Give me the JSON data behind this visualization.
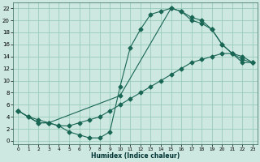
{
  "xlabel": "Humidex (Indice chaleur)",
  "ylabel": "",
  "bg_color": "#cce8e0",
  "grid_color": "#99ccbb",
  "line_color": "#1a6655",
  "xlim": [
    -0.5,
    23.5
  ],
  "ylim": [
    -0.5,
    23
  ],
  "xticks": [
    0,
    1,
    2,
    3,
    4,
    5,
    6,
    7,
    8,
    9,
    10,
    11,
    12,
    13,
    14,
    15,
    16,
    17,
    18,
    19,
    20,
    21,
    22,
    23
  ],
  "yticks": [
    0,
    2,
    4,
    6,
    8,
    10,
    12,
    14,
    16,
    18,
    20,
    22
  ],
  "line1_x": [
    0,
    1,
    2,
    3,
    4,
    5,
    6,
    7,
    8,
    9,
    10,
    11,
    12,
    13,
    14,
    15,
    16,
    17,
    18,
    19,
    20,
    21,
    22,
    23
  ],
  "line1_y": [
    5,
    4,
    3,
    3,
    2.5,
    1.5,
    1,
    0.5,
    0.5,
    1.5,
    9,
    15.5,
    18.5,
    21,
    21.5,
    22,
    21.5,
    20.5,
    20,
    18.5,
    16,
    14.5,
    13,
    13
  ],
  "line2_x": [
    0,
    2,
    3,
    10,
    15,
    16,
    17,
    18,
    19,
    20,
    21,
    22,
    23
  ],
  "line2_y": [
    5,
    3,
    3,
    7.5,
    22,
    21.5,
    20,
    19.5,
    18.5,
    16,
    14.5,
    13.5,
    13
  ],
  "line3_x": [
    0,
    1,
    2,
    3,
    4,
    5,
    6,
    7,
    8,
    9,
    10,
    11,
    12,
    13,
    14,
    15,
    16,
    17,
    18,
    19,
    20,
    21,
    22,
    23
  ],
  "line3_y": [
    5,
    4,
    3.5,
    3,
    2.5,
    2.5,
    3,
    3.5,
    4,
    5,
    6,
    7,
    8,
    9,
    10,
    11,
    12,
    13,
    13.5,
    14,
    14.5,
    14.5,
    14,
    13
  ]
}
